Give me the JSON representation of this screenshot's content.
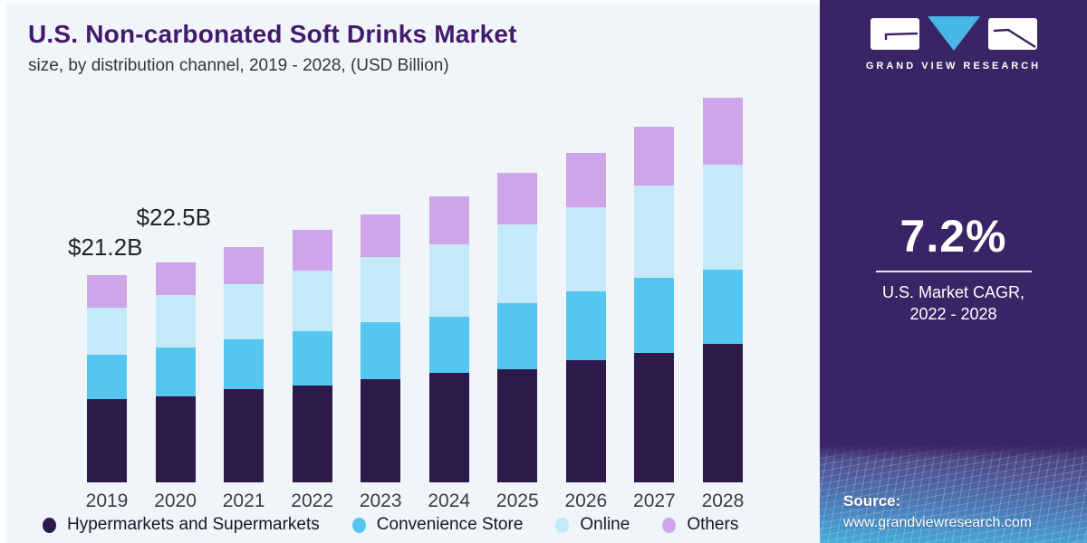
{
  "header": {
    "title": "U.S. Non-carbonated Soft Drinks Market",
    "subtitle": "size, by distribution channel, 2019 - 2028, (USD Billion)"
  },
  "chart_data": {
    "type": "bar",
    "stacked": true,
    "title": "U.S. Non-carbonated Soft Drinks Market size, by distribution channel, 2019 - 2028, (USD Billion)",
    "unit": "USD Billion",
    "grid": false,
    "y_axis_shown": false,
    "legend_position": "bottom",
    "categories": [
      "2019",
      "2020",
      "2021",
      "2022",
      "2023",
      "2024",
      "2025",
      "2026",
      "2027",
      "2028"
    ],
    "series": [
      {
        "name": "Hypermarkets and Supermarkets",
        "color": "#2e1a4a",
        "values": [
          8.5,
          8.8,
          9.5,
          9.9,
          10.5,
          11.2,
          11.6,
          12.5,
          13.2,
          14.1
        ]
      },
      {
        "name": "Convenience Store",
        "color": "#54c6f0",
        "values": [
          4.5,
          5.0,
          5.1,
          5.5,
          5.9,
          5.7,
          6.7,
          7.0,
          7.7,
          7.6
        ]
      },
      {
        "name": "Online",
        "color": "#c4e9f9",
        "values": [
          4.8,
          5.3,
          5.6,
          6.2,
          6.6,
          7.4,
          8.0,
          8.6,
          9.4,
          10.7
        ]
      },
      {
        "name": "Others",
        "color": "#cda5e8",
        "values": [
          3.4,
          3.4,
          3.8,
          4.2,
          4.4,
          4.9,
          5.3,
          5.5,
          6.0,
          6.9
        ]
      }
    ],
    "totals": [
      21.2,
      22.5,
      24.0,
      25.8,
      27.4,
      29.2,
      31.6,
      33.6,
      36.3,
      39.3
    ],
    "annotations": [
      {
        "category": "2019",
        "label": "$21.2B"
      },
      {
        "category": "2020",
        "label": "$22.5B"
      }
    ]
  },
  "sidebar": {
    "logo": {
      "brand": "GRAND VIEW RESEARCH"
    },
    "colors": {
      "background": "#3a2465",
      "triangle": "#47b7e8"
    },
    "cagr": {
      "value": "7.2%",
      "caption_line1": "U.S. Market CAGR,",
      "caption_line2": "2022 - 2028"
    },
    "source": {
      "label": "Source:",
      "url": "www.grandviewresearch.com"
    }
  }
}
